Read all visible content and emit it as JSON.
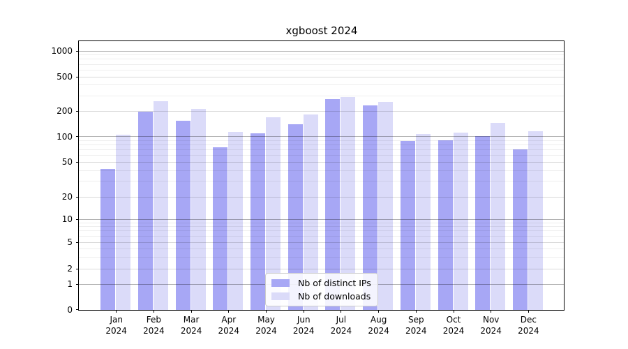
{
  "title": "xgboost 2024",
  "chart_data": {
    "type": "bar",
    "title": "xgboost 2024",
    "categories": [
      "Jan 2024",
      "Feb 2024",
      "Mar 2024",
      "Apr 2024",
      "May 2024",
      "Jun 2024",
      "Jul 2024",
      "Aug 2024",
      "Sep 2024",
      "Oct 2024",
      "Nov 2024",
      "Dec 2024"
    ],
    "series": [
      {
        "name": "Nb of distinct IPs",
        "color": "#a7a7f5",
        "values": [
          42,
          198,
          152,
          75,
          109,
          140,
          276,
          233,
          89,
          90,
          101,
          71
        ]
      },
      {
        "name": "Nb of downloads",
        "color": "#dbdbf9",
        "values": [
          104,
          260,
          213,
          114,
          170,
          183,
          291,
          256,
          106,
          112,
          144,
          115
        ]
      }
    ],
    "yscale": "symlog",
    "yticks": [
      0,
      1,
      2,
      5,
      10,
      20,
      50,
      100,
      200,
      500,
      1000
    ],
    "ylim": [
      0,
      1300
    ],
    "xlabel": "",
    "ylabel": "",
    "grid": true,
    "legend_position": "lower center"
  }
}
